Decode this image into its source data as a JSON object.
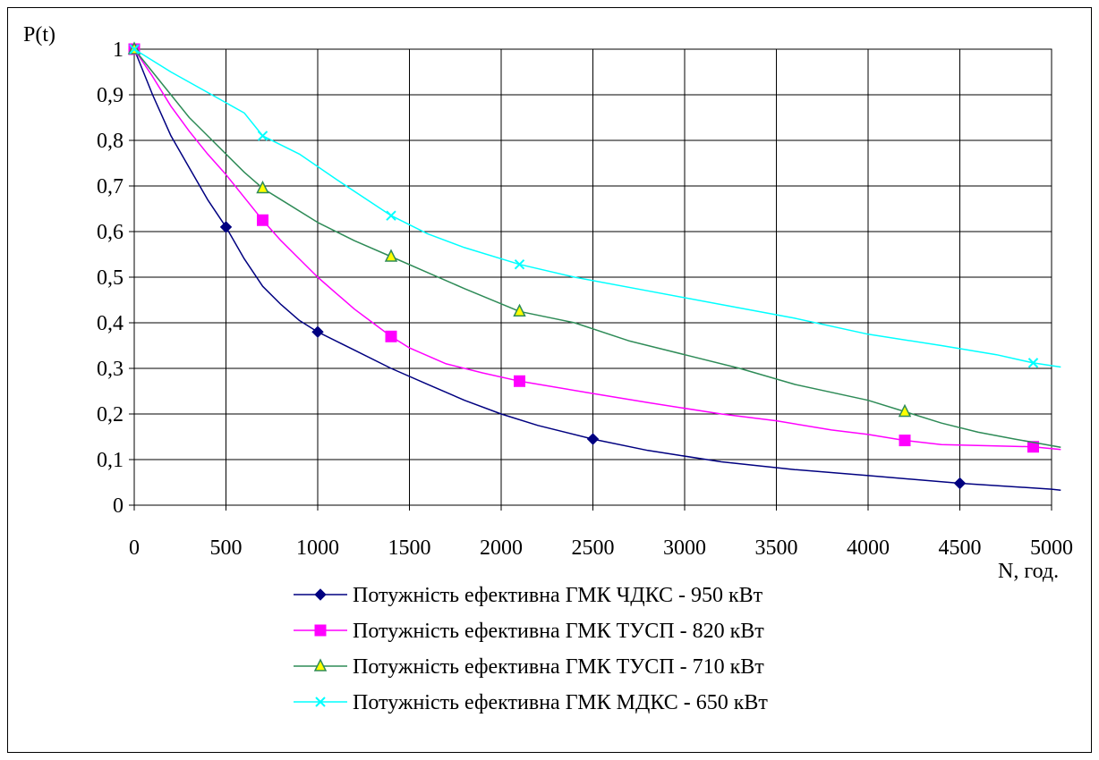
{
  "chart_data": {
    "type": "line",
    "title": "",
    "ylabel": "P(t)",
    "xlabel": "N, год.",
    "xlim": [
      0,
      5000
    ],
    "ylim": [
      0,
      1
    ],
    "x_ticks": [
      "0",
      "500",
      "1000",
      "1500",
      "2000",
      "2500",
      "3000",
      "3500",
      "4000",
      "4500",
      "5000"
    ],
    "y_ticks": [
      "0",
      "0,1",
      "0,2",
      "0,3",
      "0,4",
      "0,5",
      "0,6",
      "0,7",
      "0,8",
      "0,9",
      "1"
    ],
    "grid": true,
    "legend_position": "bottom",
    "series": [
      {
        "name": "Потужність ефективна ГМК ЧДКС - 950 кВт",
        "color": "#000080",
        "marker": "diamond",
        "curve": [
          [
            0,
            1
          ],
          [
            100,
            0.9
          ],
          [
            200,
            0.81
          ],
          [
            300,
            0.74
          ],
          [
            400,
            0.67
          ],
          [
            500,
            0.61
          ],
          [
            600,
            0.54
          ],
          [
            700,
            0.48
          ],
          [
            800,
            0.44
          ],
          [
            900,
            0.405
          ],
          [
            1000,
            0.38
          ],
          [
            1200,
            0.34
          ],
          [
            1400,
            0.3
          ],
          [
            1600,
            0.265
          ],
          [
            1800,
            0.23
          ],
          [
            2000,
            0.2
          ],
          [
            2200,
            0.175
          ],
          [
            2500,
            0.145
          ],
          [
            2800,
            0.12
          ],
          [
            3200,
            0.095
          ],
          [
            3600,
            0.078
          ],
          [
            4000,
            0.065
          ],
          [
            4500,
            0.048
          ],
          [
            5000,
            0.035
          ],
          [
            5050,
            0.033
          ]
        ],
        "markers": [
          [
            0,
            1
          ],
          [
            500,
            0.61
          ],
          [
            1000,
            0.38
          ],
          [
            2500,
            0.145
          ],
          [
            4500,
            0.048
          ]
        ]
      },
      {
        "name": "Потужність ефективна ГМК ТУСП - 820 кВт",
        "color": "#FF00FF",
        "marker": "square",
        "curve": [
          [
            0,
            1
          ],
          [
            100,
            0.94
          ],
          [
            200,
            0.875
          ],
          [
            300,
            0.82
          ],
          [
            400,
            0.77
          ],
          [
            500,
            0.725
          ],
          [
            600,
            0.675
          ],
          [
            700,
            0.625
          ],
          [
            800,
            0.58
          ],
          [
            900,
            0.54
          ],
          [
            1000,
            0.5
          ],
          [
            1100,
            0.465
          ],
          [
            1200,
            0.43
          ],
          [
            1300,
            0.4
          ],
          [
            1400,
            0.37
          ],
          [
            1500,
            0.345
          ],
          [
            1700,
            0.31
          ],
          [
            1900,
            0.29
          ],
          [
            2100,
            0.272
          ],
          [
            2500,
            0.245
          ],
          [
            2800,
            0.225
          ],
          [
            3200,
            0.2
          ],
          [
            3500,
            0.185
          ],
          [
            3800,
            0.165
          ],
          [
            4000,
            0.155
          ],
          [
            4200,
            0.142
          ],
          [
            4400,
            0.133
          ],
          [
            4900,
            0.128
          ],
          [
            5050,
            0.122
          ]
        ],
        "markers": [
          [
            0,
            1
          ],
          [
            700,
            0.625
          ],
          [
            1400,
            0.37
          ],
          [
            2100,
            0.272
          ],
          [
            4200,
            0.142
          ],
          [
            4900,
            0.128
          ]
        ]
      },
      {
        "name": "Потужність ефективна ГМК ТУСП - 710 кВт",
        "color": "#2E8B57",
        "marker": "triangle",
        "curve": [
          [
            0,
            1
          ],
          [
            100,
            0.95
          ],
          [
            200,
            0.9
          ],
          [
            300,
            0.85
          ],
          [
            400,
            0.81
          ],
          [
            500,
            0.77
          ],
          [
            600,
            0.73
          ],
          [
            700,
            0.695
          ],
          [
            800,
            0.67
          ],
          [
            1000,
            0.62
          ],
          [
            1200,
            0.58
          ],
          [
            1400,
            0.545
          ],
          [
            1600,
            0.51
          ],
          [
            1800,
            0.475
          ],
          [
            2100,
            0.425
          ],
          [
            2400,
            0.4
          ],
          [
            2700,
            0.36
          ],
          [
            3000,
            0.33
          ],
          [
            3300,
            0.3
          ],
          [
            3600,
            0.265
          ],
          [
            4000,
            0.23
          ],
          [
            4200,
            0.205
          ],
          [
            4400,
            0.18
          ],
          [
            4600,
            0.16
          ],
          [
            4800,
            0.145
          ],
          [
            5050,
            0.127
          ]
        ],
        "markers": [
          [
            0,
            1
          ],
          [
            700,
            0.695
          ],
          [
            1400,
            0.545
          ],
          [
            2100,
            0.425
          ],
          [
            4200,
            0.205
          ]
        ]
      },
      {
        "name": "Потужність ефективна ГМК МДКС - 650 кВт",
        "color": "#00FFFF",
        "marker": "x",
        "curve": [
          [
            0,
            1
          ],
          [
            200,
            0.95
          ],
          [
            400,
            0.905
          ],
          [
            600,
            0.86
          ],
          [
            700,
            0.81
          ],
          [
            900,
            0.77
          ],
          [
            1100,
            0.715
          ],
          [
            1400,
            0.635
          ],
          [
            1600,
            0.595
          ],
          [
            1800,
            0.565
          ],
          [
            2100,
            0.528
          ],
          [
            2400,
            0.5
          ],
          [
            2800,
            0.47
          ],
          [
            3200,
            0.44
          ],
          [
            3600,
            0.41
          ],
          [
            4000,
            0.375
          ],
          [
            4400,
            0.35
          ],
          [
            4700,
            0.33
          ],
          [
            4900,
            0.312
          ],
          [
            5050,
            0.303
          ]
        ],
        "markers": [
          [
            0,
            1
          ],
          [
            700,
            0.81
          ],
          [
            1400,
            0.635
          ],
          [
            2100,
            0.528
          ],
          [
            4900,
            0.312
          ]
        ]
      }
    ]
  }
}
